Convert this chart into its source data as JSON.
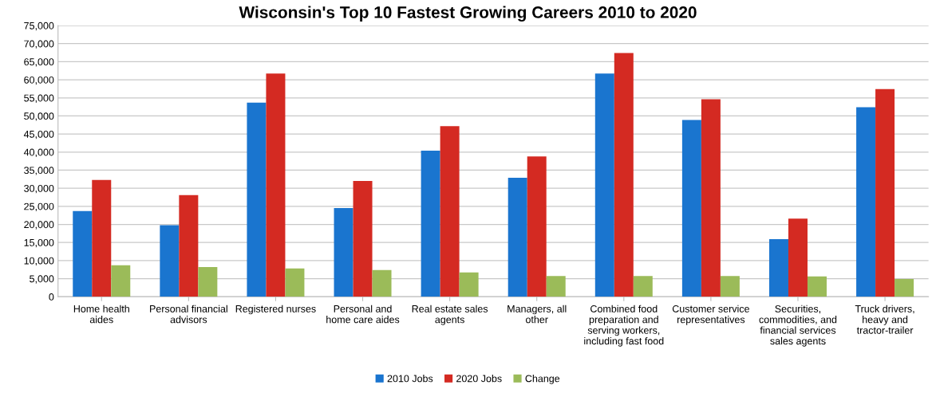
{
  "chart_data": {
    "type": "bar",
    "title": "Wisconsin's Top 10 Fastest Growing Careers 2010 to 2020",
    "categories": [
      "Home health aides",
      "Personal financial advisors",
      "Registered nurses",
      "Personal and home care aides",
      "Real estate sales agents",
      "Managers, all other",
      "Combined food preparation and serving workers, including fast food",
      "Customer service representatives",
      "Securities, commodities, and financial services sales agents",
      "Truck drivers, heavy and tractor-trailer"
    ],
    "series": [
      {
        "name": "2010 Jobs",
        "color": "#1a75cf",
        "values": [
          23700,
          19800,
          53700,
          24500,
          40400,
          32900,
          61700,
          48900,
          15900,
          52400
        ]
      },
      {
        "name": "2020 Jobs",
        "color": "#d42a22",
        "values": [
          32300,
          28100,
          61700,
          32000,
          47200,
          38800,
          67400,
          54600,
          21600,
          57400
        ]
      },
      {
        "name": "Change",
        "color": "#9bbb59",
        "values": [
          8700,
          8200,
          7800,
          7400,
          6700,
          5700,
          5700,
          5700,
          5600,
          4900
        ]
      }
    ],
    "ylim": [
      0,
      75000
    ],
    "yticks": [
      {
        "value": 0,
        "label": "0"
      },
      {
        "value": 5000,
        "label": "5,000"
      },
      {
        "value": 10000,
        "label": "10,000"
      },
      {
        "value": 15000,
        "label": "15,000"
      },
      {
        "value": 20000,
        "label": "20,000"
      },
      {
        "value": 25000,
        "label": "25,000"
      },
      {
        "value": 30000,
        "label": "30,000"
      },
      {
        "value": 35000,
        "label": "35,000"
      },
      {
        "value": 40000,
        "label": "40,000"
      },
      {
        "value": 45000,
        "label": "45,000"
      },
      {
        "value": 50000,
        "label": "50,000"
      },
      {
        "value": 55000,
        "label": "55,000"
      },
      {
        "value": 60000,
        "label": "60,000"
      },
      {
        "value": 65000,
        "label": "65,000"
      },
      {
        "value": 70000,
        "label": "70,000"
      },
      {
        "value": 75000,
        "label": "75,000"
      }
    ],
    "grid": "y",
    "legend": "bottom"
  }
}
